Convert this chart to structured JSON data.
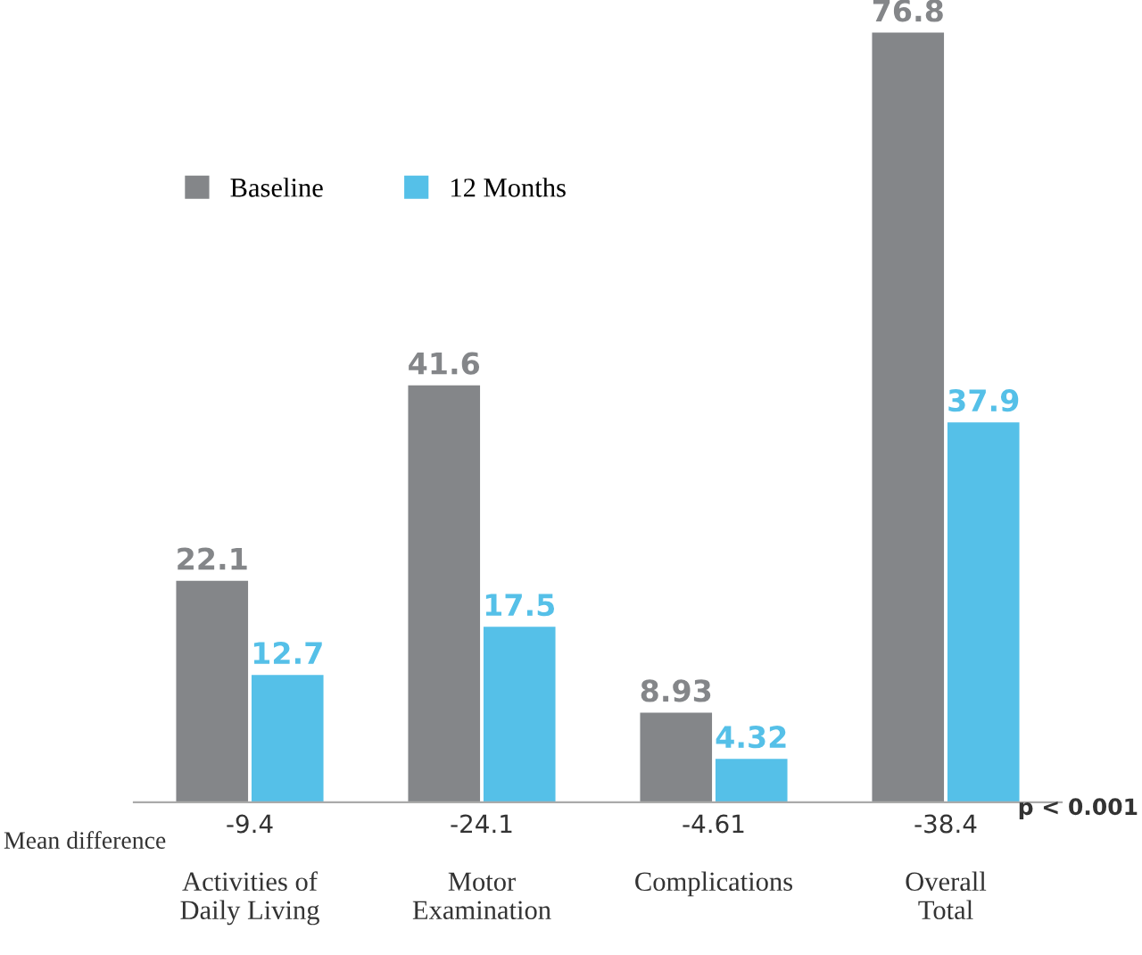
{
  "chart_data": {
    "type": "bar",
    "categories": [
      "Activities of\nDaily Living",
      "Motor\nExamination",
      "Complications",
      "Overall\nTotal"
    ],
    "series": [
      {
        "name": "Baseline",
        "color": "#848689",
        "values": [
          22.1,
          41.6,
          8.93,
          76.8
        ]
      },
      {
        "name": "12 Months",
        "color": "#55c0e8",
        "values": [
          12.7,
          17.5,
          4.32,
          37.9
        ]
      }
    ],
    "data_labels": true,
    "legend": "top left",
    "grid": false,
    "annotations": [
      "Mean difference",
      "-9.4",
      "-24.1",
      "-4.61",
      "-38.4",
      "p < 0.001"
    ]
  }
}
